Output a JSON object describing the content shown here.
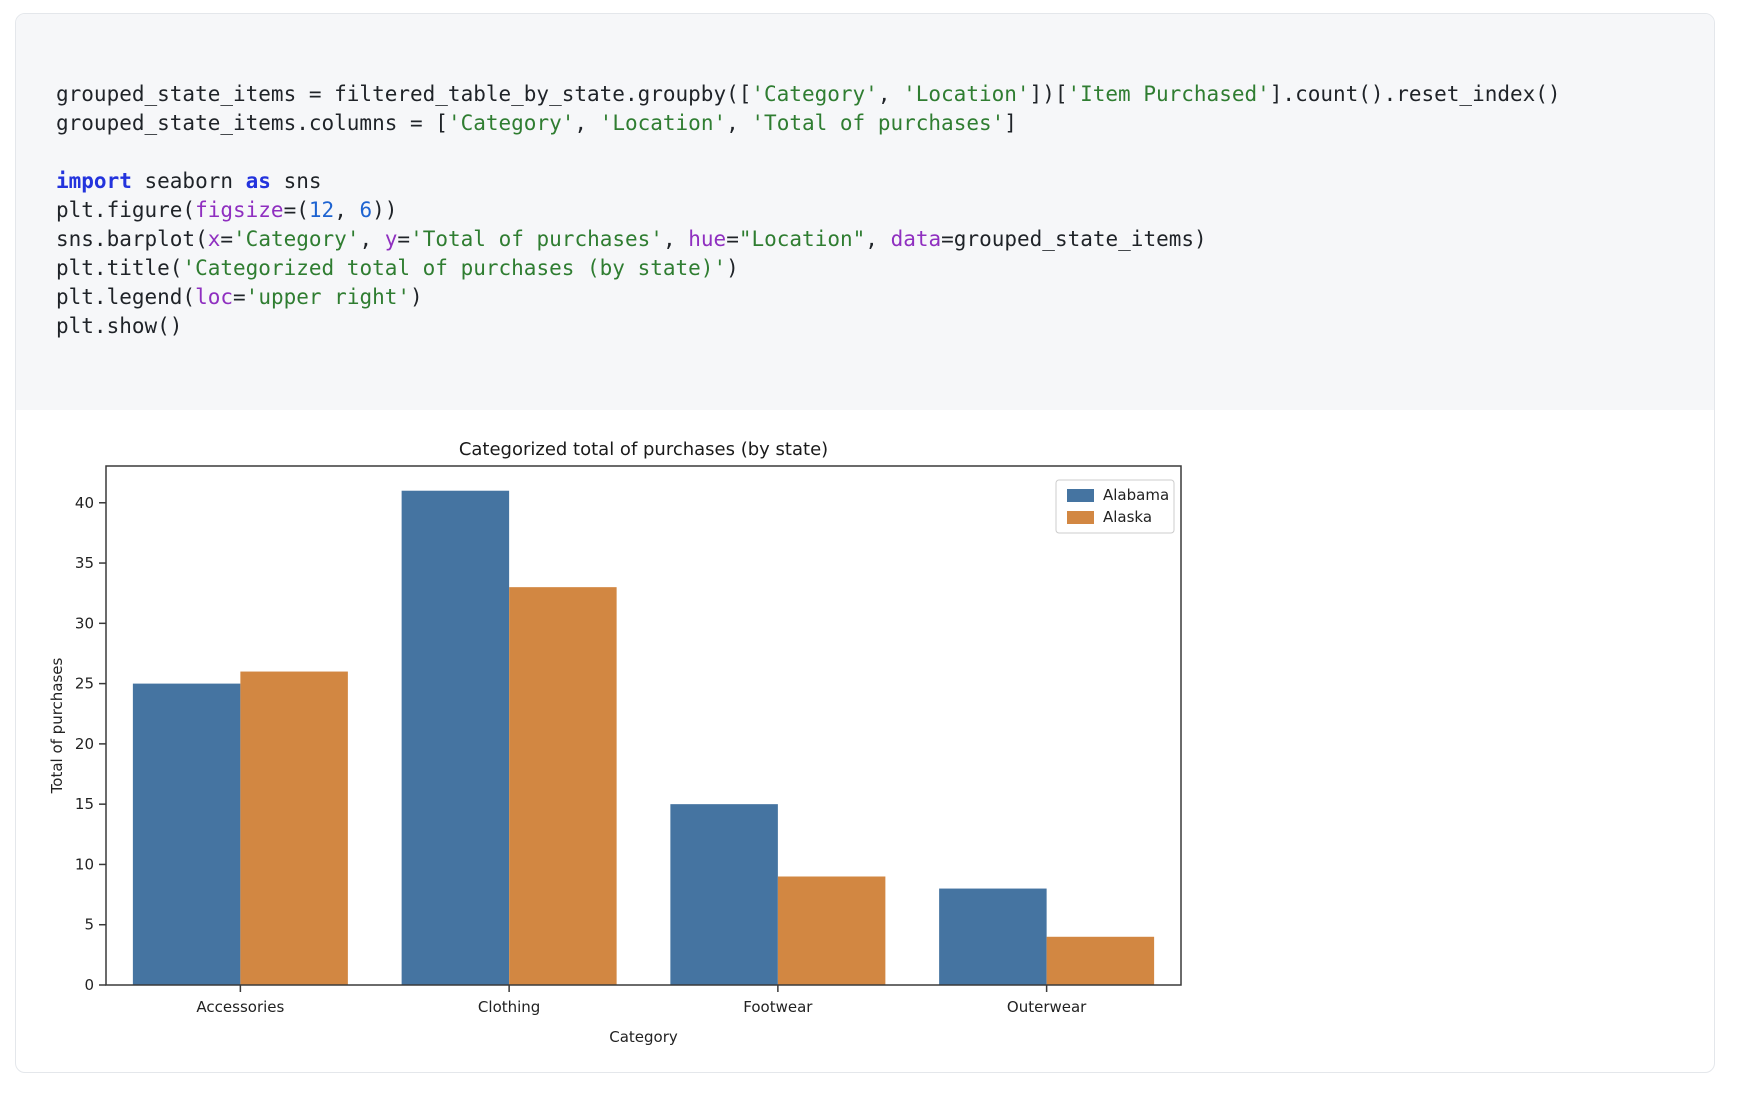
{
  "colors": {
    "alabama_blue": "#4574a1",
    "alaska_orange": "#d28742",
    "code_background": "#f6f7f9",
    "cell_border": "#e4e7eb",
    "axis": "#3a3a3a",
    "keyword": "#2333dd",
    "string": "#2f7d31",
    "number": "#1d63d1",
    "kwarg": "#8f2fc0"
  },
  "code": {
    "lines": [
      [
        {
          "t": "grouped_state_items = filtered_table_by_state.groupby(["
        },
        {
          "t": "'Category'",
          "c": "str"
        },
        {
          "t": ", "
        },
        {
          "t": "'Location'",
          "c": "str"
        },
        {
          "t": "])["
        },
        {
          "t": "'Item Purchased'",
          "c": "str"
        },
        {
          "t": "].count().reset_index()"
        }
      ],
      [
        {
          "t": "grouped_state_items.columns = ["
        },
        {
          "t": "'Category'",
          "c": "str"
        },
        {
          "t": ", "
        },
        {
          "t": "'Location'",
          "c": "str"
        },
        {
          "t": ", "
        },
        {
          "t": "'Total of purchases'",
          "c": "str"
        },
        {
          "t": "]"
        }
      ],
      [],
      [
        {
          "t": "import",
          "c": "kw"
        },
        {
          "t": " seaborn "
        },
        {
          "t": "as",
          "c": "kw"
        },
        {
          "t": " sns"
        }
      ],
      [
        {
          "t": "plt.figure("
        },
        {
          "t": "figsize",
          "c": "kwarg"
        },
        {
          "t": "=("
        },
        {
          "t": "12",
          "c": "num"
        },
        {
          "t": ", "
        },
        {
          "t": "6",
          "c": "num"
        },
        {
          "t": "))"
        }
      ],
      [
        {
          "t": "sns.barplot("
        },
        {
          "t": "x",
          "c": "kwarg"
        },
        {
          "t": "="
        },
        {
          "t": "'Category'",
          "c": "str"
        },
        {
          "t": ", "
        },
        {
          "t": "y",
          "c": "kwarg"
        },
        {
          "t": "="
        },
        {
          "t": "'Total of purchases'",
          "c": "str"
        },
        {
          "t": ", "
        },
        {
          "t": "hue",
          "c": "kwarg"
        },
        {
          "t": "="
        },
        {
          "t": "\"Location\"",
          "c": "str"
        },
        {
          "t": ", "
        },
        {
          "t": "data",
          "c": "kwarg"
        },
        {
          "t": "=grouped_state_items)"
        }
      ],
      [
        {
          "t": "plt.title("
        },
        {
          "t": "'Categorized total of purchases (by state)'",
          "c": "str"
        },
        {
          "t": ")"
        }
      ],
      [
        {
          "t": "plt.legend("
        },
        {
          "t": "loc",
          "c": "kwarg"
        },
        {
          "t": "="
        },
        {
          "t": "'upper right'",
          "c": "str"
        },
        {
          "t": ")"
        }
      ],
      [
        {
          "t": "plt.show()"
        }
      ]
    ]
  },
  "chart_data": {
    "type": "bar",
    "title": "Categorized total of purchases (by state)",
    "categories": [
      "Accessories",
      "Clothing",
      "Footwear",
      "Outerwear"
    ],
    "series": [
      {
        "name": "Alabama",
        "color": "#4574a1",
        "values": [
          25,
          41,
          15,
          8
        ]
      },
      {
        "name": "Alaska",
        "color": "#d28742",
        "values": [
          26,
          33,
          9,
          4
        ]
      }
    ],
    "xlabel": "Category",
    "ylabel": "Total of purchases",
    "ylim": [
      0,
      43.05
    ],
    "yticks": [
      0,
      5,
      10,
      15,
      20,
      25,
      30,
      35,
      40
    ],
    "legend_position": "upper right",
    "grid": false
  }
}
